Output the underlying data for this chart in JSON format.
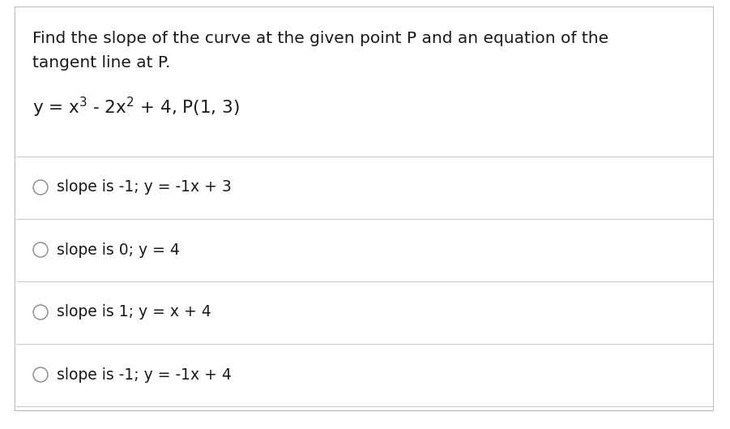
{
  "background_color": "#ffffff",
  "border_color": "#bbbbbb",
  "question_line1": "Find the slope of the curve at the given point P and an equation of the",
  "question_line2": "tangent line at P.",
  "options": [
    "slope is -1; y = -1x + 3",
    "slope is 0; y = 4",
    "slope is 1; y = x + 4",
    "slope is -1; y = -1x + 4"
  ],
  "text_color": "#1a1a1a",
  "divider_color": "#cccccc",
  "font_size_question": 14.5,
  "font_size_equation": 15.5,
  "font_size_option": 13.5,
  "fig_width": 9.01,
  "fig_height": 5.29
}
